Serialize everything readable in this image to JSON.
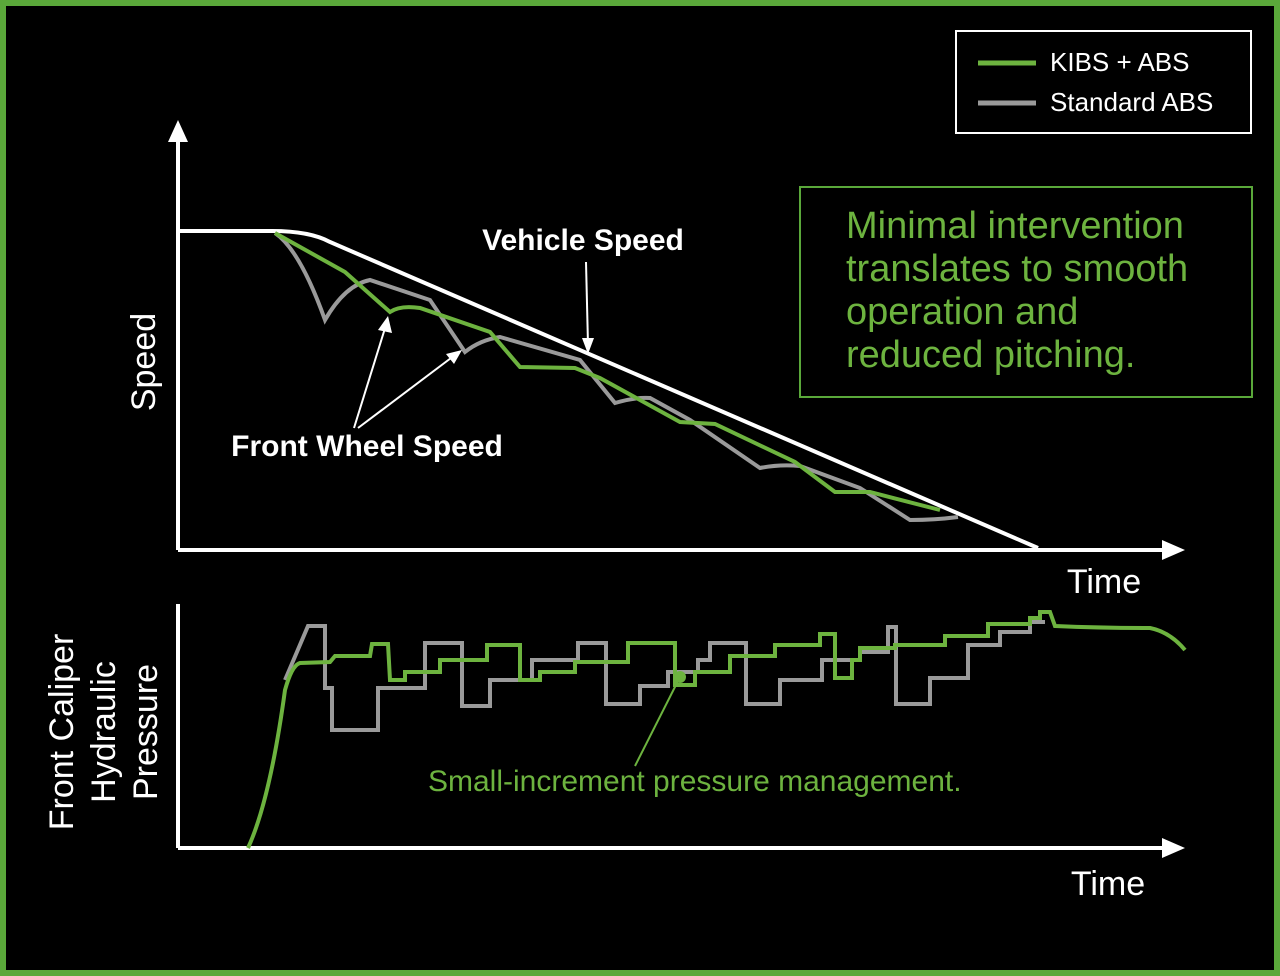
{
  "legend": {
    "items": [
      "KIBS + ABS",
      "Standard ABS"
    ]
  },
  "callout": {
    "lines": [
      "Minimal intervention",
      "translates to smooth",
      "operation and",
      "reduced pitching."
    ]
  },
  "speed_chart": {
    "y_label": "Speed",
    "x_label": "Time",
    "vehicle_label": "Vehicle Speed",
    "wheel_label": "Front Wheel Speed"
  },
  "pressure_chart": {
    "y_label": [
      "Front Caliper",
      "Hydraulic",
      "Pressure"
    ],
    "x_label": "Time",
    "annotation": "Small-increment pressure management."
  }
}
